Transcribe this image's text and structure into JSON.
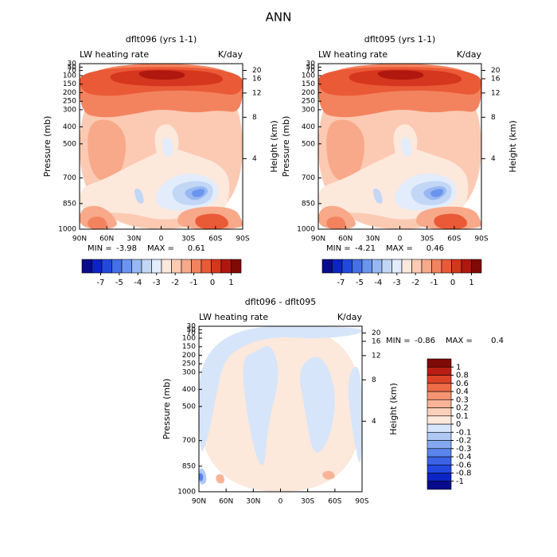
{
  "title": "ANN",
  "chart_data": [
    {
      "type": "contour",
      "title": "dflt096 (yrs 1-1)",
      "left_label": "LW heating rate",
      "right_label": "K/day",
      "ylabel": "Pressure (mb)",
      "y2label": "Height (km)",
      "xlim": [
        90,
        -90
      ],
      "xticks": [
        {
          "value": 90,
          "label": "90N"
        },
        {
          "value": 60,
          "label": "60N"
        },
        {
          "value": 30,
          "label": "30N"
        },
        0,
        {
          "value": -30,
          "label": "30S"
        },
        {
          "value": -60,
          "label": "60S"
        },
        {
          "value": -90,
          "label": "90S"
        }
      ],
      "ylim": [
        1000,
        30
      ],
      "yticks": [
        30,
        50,
        70,
        100,
        150,
        200,
        250,
        300,
        400,
        500,
        700,
        850,
        1000
      ],
      "y2lim": [
        0,
        26.3
      ],
      "y2ticks": [
        4,
        8,
        12,
        16,
        20
      ],
      "y2_scale": "log",
      "min_label": "MIN =",
      "min": -3.98,
      "max_label": "MAX =",
      "max": 0.61,
      "colorbar": {
        "orientation": "horizontal",
        "levels": [
          -7,
          -5,
          -4,
          -3,
          -2,
          -1,
          0,
          1
        ],
        "colors": [
          "#0a0a8c",
          "#0d24c4",
          "#2149e0",
          "#4470e8",
          "#6a94ee",
          "#97b8f2",
          "#c2d6f6",
          "#e2ecfb",
          "#fde8dc",
          "#fccab3",
          "#f8a98a",
          "#f3835f",
          "#ea5a37",
          "#d5361e",
          "#b0170f",
          "#7f0a06"
        ]
      }
    },
    {
      "type": "contour",
      "title": "dflt095 (yrs 1-1)",
      "left_label": "LW heating rate",
      "right_label": "K/day",
      "ylabel": "Pressure (mb)",
      "y2label": "Height (km)",
      "xlim": [
        90,
        -90
      ],
      "xticks": [
        {
          "value": 90,
          "label": "90N"
        },
        {
          "value": 60,
          "label": "60N"
        },
        {
          "value": 30,
          "label": "30N"
        },
        0,
        {
          "value": -30,
          "label": "30S"
        },
        {
          "value": -60,
          "label": "60S"
        },
        {
          "value": -90,
          "label": "90S"
        }
      ],
      "ylim": [
        1000,
        30
      ],
      "yticks": [
        30,
        50,
        70,
        100,
        150,
        200,
        250,
        300,
        400,
        500,
        700,
        850,
        1000
      ],
      "y2lim": [
        0,
        26.3
      ],
      "y2ticks": [
        4,
        8,
        12,
        16,
        20
      ],
      "y2_scale": "log",
      "min_label": "MIN =",
      "min": -4.21,
      "max_label": "MAX =",
      "max": 0.46,
      "colorbar": {
        "orientation": "horizontal",
        "levels": [
          -7,
          -5,
          -4,
          -3,
          -2,
          -1,
          0,
          1
        ],
        "colors": [
          "#0a0a8c",
          "#0d24c4",
          "#2149e0",
          "#4470e8",
          "#6a94ee",
          "#97b8f2",
          "#c2d6f6",
          "#e2ecfb",
          "#fde8dc",
          "#fccab3",
          "#f8a98a",
          "#f3835f",
          "#ea5a37",
          "#d5361e",
          "#b0170f",
          "#7f0a06"
        ]
      }
    },
    {
      "type": "contour",
      "title": "dflt096 - dflt095",
      "left_label": "LW heating rate",
      "right_label": "K/day",
      "ylabel": "Pressure (mb)",
      "y2label": "Height (km)",
      "xlim": [
        90,
        -90
      ],
      "xticks": [
        {
          "value": 90,
          "label": "90N"
        },
        {
          "value": 60,
          "label": "60N"
        },
        {
          "value": 30,
          "label": "30N"
        },
        0,
        {
          "value": -30,
          "label": "30S"
        },
        {
          "value": -60,
          "label": "60S"
        },
        {
          "value": -90,
          "label": "90S"
        }
      ],
      "ylim": [
        1000,
        30
      ],
      "yticks": [
        30,
        50,
        70,
        100,
        150,
        200,
        250,
        300,
        400,
        500,
        700,
        850,
        1000
      ],
      "y2lim": [
        0,
        26.3
      ],
      "y2ticks": [
        4,
        8,
        12,
        16,
        20
      ],
      "y2_scale": "log",
      "min_label": "MIN =",
      "min": -0.86,
      "max_label": "MAX =",
      "max": 0.4,
      "colorbar": {
        "orientation": "vertical",
        "levels": [
          -1,
          -0.8,
          -0.6,
          -0.4,
          -0.3,
          -0.2,
          -0.1,
          0,
          0.1,
          0.2,
          0.3,
          0.4,
          0.6,
          0.8,
          1
        ],
        "colors": [
          "#0a0a8c",
          "#0d24c4",
          "#2149e0",
          "#3a63e6",
          "#5a85ec",
          "#84a8f0",
          "#b0c9f4",
          "#d6e5fa",
          "#fde8dc",
          "#fcd0bb",
          "#f9b497",
          "#f59472",
          "#ee6c48",
          "#dc4326",
          "#b81f12",
          "#7f0a06"
        ]
      }
    }
  ]
}
